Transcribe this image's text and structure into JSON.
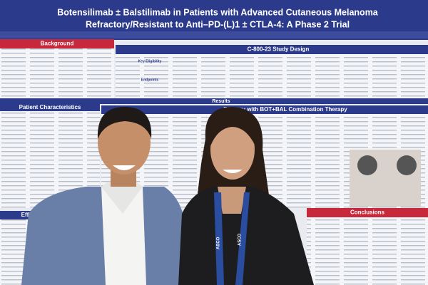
{
  "poster": {
    "title": [
      "Botensilimab ± Balstilimab in Patients with Advanced Cutaneous Melanoma",
      "Refractory/Resistant to Anti–PD-(L)1 ± CTLA-4: A Phase 2 Trial"
    ],
    "sections": {
      "background": "Background",
      "study_design": "C-800-23 Study Design",
      "key_eligibility": "Key Eligibility",
      "endpoints": "Endpoints",
      "results": "Results",
      "patient_characteristics": "Patient Characteristics",
      "efficacy_combo": "Efficacy with BOT+BAL Combination Therapy",
      "conclusions": "Conclusions",
      "efficacy": "Efficacy"
    }
  },
  "lanyard": "ASCO"
}
